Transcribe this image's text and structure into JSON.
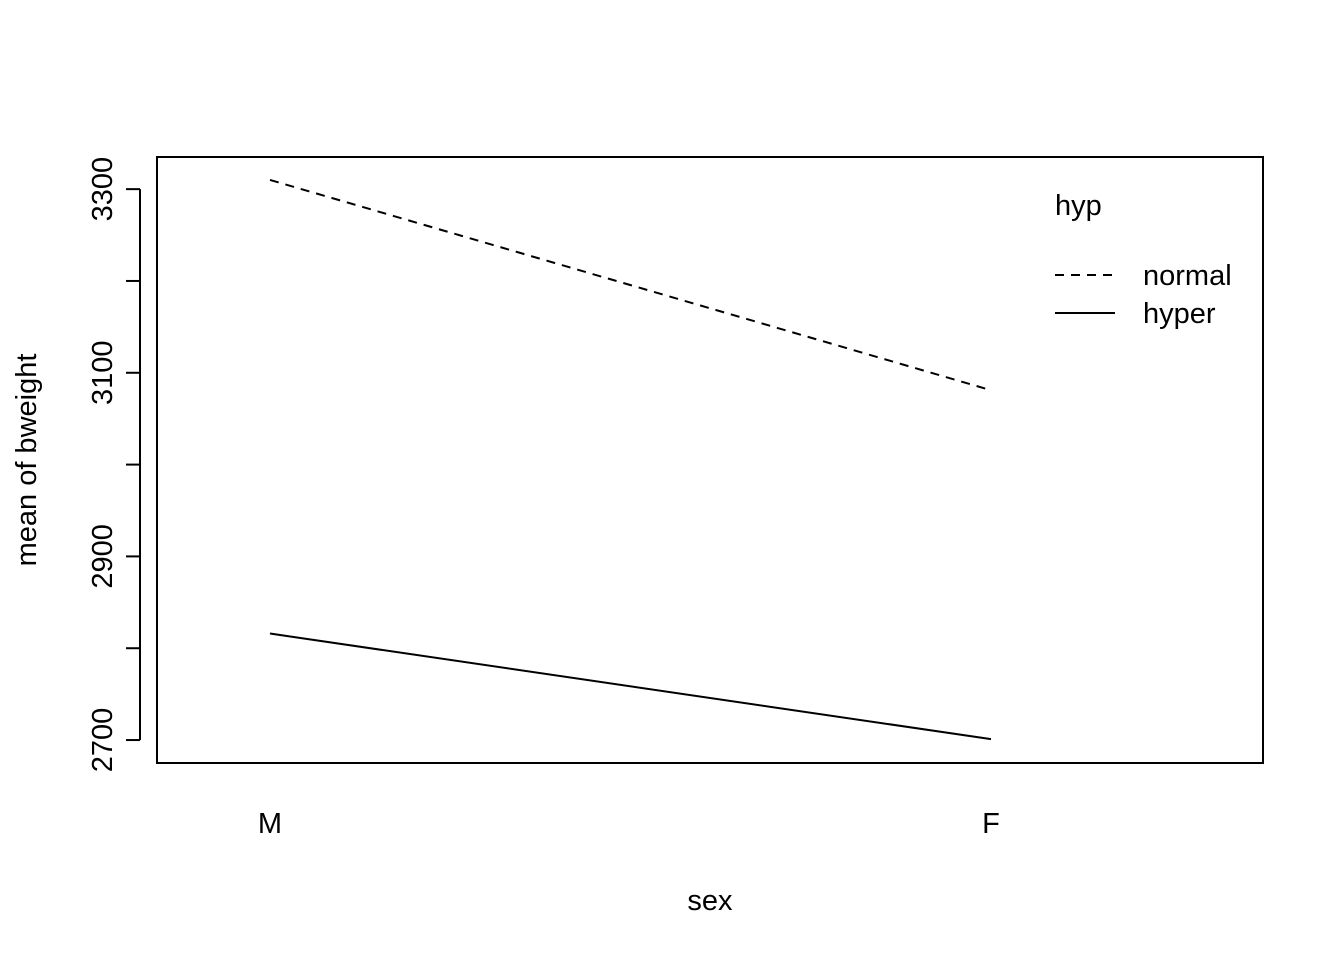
{
  "chart_data": {
    "type": "line",
    "title": "",
    "xlabel": "sex",
    "ylabel": "mean of  bweight",
    "categories": [
      "M",
      "F"
    ],
    "ylim": [
      2675,
      3335
    ],
    "yticks": [
      2700,
      2800,
      2900,
      3000,
      3100,
      3200,
      3300
    ],
    "ytick_labels": [
      "2700",
      "",
      "2900",
      "",
      "3100",
      "",
      "3300"
    ],
    "legend": {
      "title": "hyp",
      "position": "top-right"
    },
    "grid": false,
    "series": [
      {
        "name": "normal",
        "line_style": "dashed",
        "values": [
          3310,
          3081
        ]
      },
      {
        "name": "hyper",
        "line_style": "solid",
        "values": [
          2816,
          2701
        ]
      }
    ]
  }
}
